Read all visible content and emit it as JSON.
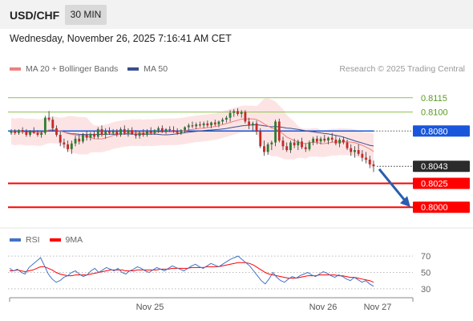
{
  "header": {
    "symbol": "USD/CHF",
    "timeframe": "30 MIN"
  },
  "datetime": "Wednesday, November 26, 2025 7:16:41 AM CET",
  "legend": {
    "ma20_label": "MA 20 + Bollinger Bands",
    "ma50_label": "MA 50",
    "credit": "Research © 2025 Trading Central"
  },
  "rsi_legend": {
    "rsi_label": "RSI",
    "ma_label": "9MA"
  },
  "colors": {
    "ma20": "#f08080",
    "ma50": "#3a4f8f",
    "bull": "#2e7d32",
    "bear": "#c62828",
    "support": "#ff0000",
    "pivot": "#1a56db",
    "target_line": "#8bc34a",
    "rsi": "#4472c4",
    "rsi_ma": "#ff0000"
  },
  "chart_data": [
    {
      "type": "candlestick",
      "x_tick_labels": [
        "Nov 25",
        "Nov 26",
        "Nov 27"
      ],
      "ylim": [
        0.7985,
        0.813
      ],
      "series": [
        {
          "name": "USD/CHF",
          "ohlc": [
            [
              0.8078,
              0.8082,
              0.8076,
              0.808
            ],
            [
              0.808,
              0.8082,
              0.8076,
              0.8078
            ],
            [
              0.8078,
              0.8082,
              0.8076,
              0.8081
            ],
            [
              0.8081,
              0.8084,
              0.8077,
              0.8079
            ],
            [
              0.8079,
              0.8082,
              0.8074,
              0.8076
            ],
            [
              0.8076,
              0.8081,
              0.8074,
              0.808
            ],
            [
              0.808,
              0.8084,
              0.8077,
              0.8078
            ],
            [
              0.8078,
              0.8081,
              0.8074,
              0.8076
            ],
            [
              0.8076,
              0.808,
              0.8073,
              0.8078
            ],
            [
              0.8078,
              0.8096,
              0.8076,
              0.8094
            ],
            [
              0.8094,
              0.8101,
              0.809,
              0.8092
            ],
            [
              0.8092,
              0.8095,
              0.808,
              0.8083
            ],
            [
              0.8083,
              0.8086,
              0.8074,
              0.8076
            ],
            [
              0.8076,
              0.808,
              0.8064,
              0.8068
            ],
            [
              0.8068,
              0.8072,
              0.8062,
              0.8066
            ],
            [
              0.8066,
              0.807,
              0.8058,
              0.8061
            ],
            [
              0.8061,
              0.807,
              0.8056,
              0.8067
            ],
            [
              0.8067,
              0.8075,
              0.8064,
              0.8072
            ],
            [
              0.8072,
              0.8076,
              0.8066,
              0.8069
            ],
            [
              0.8069,
              0.8078,
              0.8067,
              0.8076
            ],
            [
              0.8076,
              0.808,
              0.807,
              0.8073
            ],
            [
              0.8073,
              0.8079,
              0.807,
              0.8077
            ],
            [
              0.8077,
              0.808,
              0.8072,
              0.8074
            ],
            [
              0.8074,
              0.8084,
              0.8072,
              0.8082
            ],
            [
              0.8082,
              0.8086,
              0.8074,
              0.8076
            ],
            [
              0.8076,
              0.8083,
              0.8072,
              0.808
            ],
            [
              0.808,
              0.8084,
              0.8076,
              0.8078
            ],
            [
              0.8078,
              0.8082,
              0.8076,
              0.808
            ],
            [
              0.808,
              0.8082,
              0.8074,
              0.8076
            ],
            [
              0.8076,
              0.8084,
              0.8074,
              0.8082
            ],
            [
              0.8082,
              0.8086,
              0.8076,
              0.8078
            ],
            [
              0.8078,
              0.8083,
              0.8074,
              0.8081
            ],
            [
              0.8081,
              0.8084,
              0.8076,
              0.8077
            ],
            [
              0.8077,
              0.8081,
              0.8072,
              0.8075
            ],
            [
              0.8075,
              0.808,
              0.8072,
              0.8078
            ],
            [
              0.8078,
              0.8082,
              0.8074,
              0.8076
            ],
            [
              0.8076,
              0.8082,
              0.8074,
              0.808
            ],
            [
              0.808,
              0.8084,
              0.8076,
              0.8078
            ],
            [
              0.8078,
              0.8082,
              0.8076,
              0.8081
            ],
            [
              0.8081,
              0.8085,
              0.8078,
              0.8083
            ],
            [
              0.8083,
              0.8086,
              0.8078,
              0.808
            ],
            [
              0.808,
              0.8083,
              0.8077,
              0.8082
            ],
            [
              0.8082,
              0.8085,
              0.8079,
              0.8081
            ],
            [
              0.8081,
              0.8085,
              0.8078,
              0.808
            ],
            [
              0.808,
              0.8083,
              0.8076,
              0.8078
            ],
            [
              0.8078,
              0.8082,
              0.8076,
              0.8081
            ],
            [
              0.8081,
              0.8085,
              0.8078,
              0.8084
            ],
            [
              0.8084,
              0.8088,
              0.8081,
              0.8086
            ],
            [
              0.8086,
              0.809,
              0.8083,
              0.8085
            ],
            [
              0.8085,
              0.8089,
              0.8082,
              0.8087
            ],
            [
              0.8087,
              0.809,
              0.8084,
              0.8086
            ],
            [
              0.8086,
              0.809,
              0.8083,
              0.8088
            ],
            [
              0.8088,
              0.8091,
              0.8084,
              0.8086
            ],
            [
              0.8086,
              0.809,
              0.8083,
              0.8089
            ],
            [
              0.8089,
              0.8092,
              0.8085,
              0.8087
            ],
            [
              0.8087,
              0.8091,
              0.8084,
              0.809
            ],
            [
              0.809,
              0.8094,
              0.8087,
              0.8092
            ],
            [
              0.8092,
              0.8096,
              0.8089,
              0.8094
            ],
            [
              0.8094,
              0.8102,
              0.809,
              0.8099
            ],
            [
              0.8099,
              0.8103,
              0.8095,
              0.8101
            ],
            [
              0.8101,
              0.8104,
              0.8096,
              0.8098
            ],
            [
              0.8098,
              0.8102,
              0.8094,
              0.81
            ],
            [
              0.81,
              0.8102,
              0.8088,
              0.809
            ],
            [
              0.809,
              0.8094,
              0.8082,
              0.8086
            ],
            [
              0.8086,
              0.809,
              0.808,
              0.8088
            ],
            [
              0.8088,
              0.8091,
              0.8076,
              0.808
            ],
            [
              0.808,
              0.8083,
              0.8062,
              0.8064
            ],
            [
              0.8064,
              0.807,
              0.8054,
              0.8058
            ],
            [
              0.8058,
              0.8068,
              0.8055,
              0.8066
            ],
            [
              0.8066,
              0.807,
              0.806,
              0.8068
            ],
            [
              0.8068,
              0.8092,
              0.8064,
              0.809
            ],
            [
              0.809,
              0.8093,
              0.8068,
              0.807
            ],
            [
              0.807,
              0.8074,
              0.806,
              0.8064
            ],
            [
              0.8064,
              0.8068,
              0.8058,
              0.806
            ],
            [
              0.806,
              0.807,
              0.8057,
              0.8068
            ],
            [
              0.8068,
              0.8072,
              0.8062,
              0.8065
            ],
            [
              0.8065,
              0.8071,
              0.806,
              0.8069
            ],
            [
              0.8069,
              0.8073,
              0.8061,
              0.8063
            ],
            [
              0.8063,
              0.8067,
              0.8058,
              0.8061
            ],
            [
              0.8061,
              0.807,
              0.8059,
              0.8068
            ],
            [
              0.8068,
              0.8074,
              0.8065,
              0.8072
            ],
            [
              0.8072,
              0.8075,
              0.8066,
              0.8069
            ],
            [
              0.8069,
              0.8074,
              0.8066,
              0.8072
            ],
            [
              0.8072,
              0.8076,
              0.8068,
              0.807
            ],
            [
              0.807,
              0.8074,
              0.8066,
              0.8073
            ],
            [
              0.8073,
              0.8078,
              0.8068,
              0.8071
            ],
            [
              0.8071,
              0.8075,
              0.8065,
              0.8067
            ],
            [
              0.8067,
              0.8073,
              0.8063,
              0.8071
            ],
            [
              0.8071,
              0.8074,
              0.8066,
              0.8068
            ],
            [
              0.8068,
              0.8071,
              0.806,
              0.8062
            ],
            [
              0.8062,
              0.8066,
              0.8054,
              0.8058
            ],
            [
              0.8058,
              0.8064,
              0.8052,
              0.806
            ],
            [
              0.806,
              0.8066,
              0.8054,
              0.8056
            ],
            [
              0.8056,
              0.806,
              0.8048,
              0.8052
            ],
            [
              0.8052,
              0.8058,
              0.8046,
              0.805
            ],
            [
              0.805,
              0.8054,
              0.8041,
              0.8045
            ],
            [
              0.8045,
              0.8049,
              0.8037,
              0.8043
            ]
          ]
        },
        {
          "name": "MA 20 + Bollinger Bands",
          "kind": "ma20_with_bands"
        },
        {
          "name": "MA 50",
          "kind": "ma50"
        }
      ],
      "levels": [
        {
          "value": 0.8115,
          "label": "0.8115",
          "kind": "target"
        },
        {
          "value": 0.81,
          "label": "0.8100",
          "kind": "target"
        },
        {
          "value": 0.808,
          "label": "0.8080",
          "kind": "pivot"
        },
        {
          "value": 0.8043,
          "label": "0.8043",
          "kind": "last"
        },
        {
          "value": 0.8025,
          "label": "0.8025",
          "kind": "support"
        },
        {
          "value": 0.8,
          "label": "0.8000",
          "kind": "support"
        }
      ],
      "forecast_arrow": {
        "from": 0.804,
        "to": 0.8
      }
    },
    {
      "type": "line",
      "ylim": [
        25,
        75
      ],
      "y_tick_labels": [
        "70",
        "50",
        "30"
      ],
      "y_ticks": [
        70,
        50,
        30
      ],
      "series": [
        {
          "name": "RSI",
          "values": [
            55,
            52,
            54,
            50,
            48,
            56,
            60,
            64,
            68,
            58,
            48,
            42,
            38,
            40,
            44,
            46,
            50,
            52,
            48,
            45,
            47,
            52,
            55,
            50,
            53,
            56,
            54,
            52,
            55,
            50,
            48,
            52,
            54,
            57,
            55,
            52,
            50,
            53,
            56,
            54,
            52,
            55,
            58,
            56,
            54,
            52,
            55,
            58,
            60,
            57,
            55,
            58,
            61,
            59,
            57,
            60,
            63,
            66,
            68,
            70,
            66,
            62,
            58,
            52,
            46,
            40,
            36,
            42,
            50,
            44,
            40,
            38,
            42,
            45,
            43,
            46,
            48,
            50,
            47,
            45,
            48,
            51,
            49,
            46,
            44,
            47,
            45,
            42,
            40,
            44,
            41,
            38,
            40,
            36,
            33
          ]
        },
        {
          "name": "9MA",
          "values": [
            52,
            52,
            53,
            52,
            51,
            52,
            53,
            55,
            57,
            57,
            55,
            53,
            50,
            48,
            47,
            46,
            46,
            47,
            47,
            47,
            47,
            48,
            49,
            50,
            51,
            52,
            53,
            53,
            53,
            53,
            52,
            52,
            52,
            53,
            53,
            53,
            53,
            53,
            53,
            54,
            54,
            54,
            55,
            55,
            55,
            55,
            55,
            56,
            56,
            56,
            56,
            57,
            57,
            57,
            57,
            58,
            59,
            60,
            61,
            62,
            62,
            62,
            61,
            59,
            56,
            53,
            50,
            48,
            47,
            46,
            45,
            44,
            43,
            43,
            43,
            44,
            45,
            46,
            46,
            46,
            47,
            47,
            47,
            47,
            47,
            46,
            46,
            45,
            44,
            44,
            43,
            42,
            41,
            40,
            38
          ]
        }
      ]
    }
  ]
}
